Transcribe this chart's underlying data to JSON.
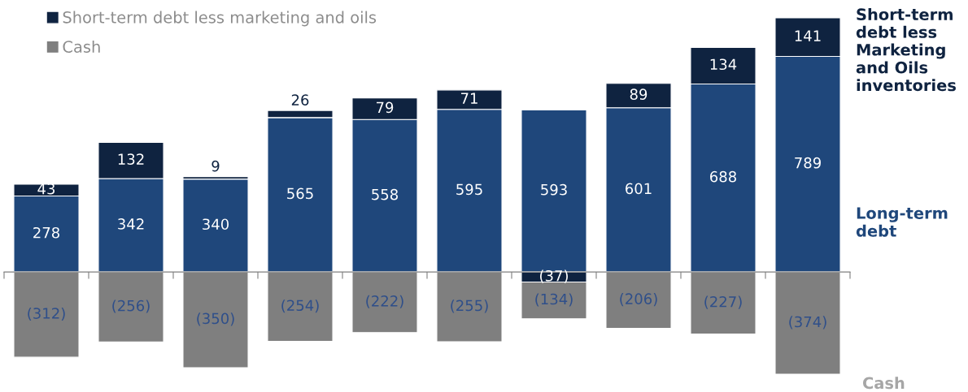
{
  "chart_data": {
    "type": "bar",
    "stacked": true,
    "categories": [
      null,
      null,
      null,
      null,
      null,
      null,
      null,
      null,
      null,
      null
    ],
    "series": [
      {
        "color": "#1f477b",
        "values": [
          278,
          342,
          340,
          565,
          558,
          595,
          593,
          601,
          688,
          789
        ],
        "value_labels": [
          "278",
          "342",
          "340",
          "565",
          "558",
          "595",
          "593",
          "601",
          "688",
          "789"
        ]
      },
      {
        "name": "Short-term debt less marketing and oils",
        "color": "#0f2340",
        "values": [
          43,
          132,
          9,
          26,
          79,
          71,
          -37,
          89,
          134,
          141
        ],
        "value_labels": [
          "43",
          "132",
          "9",
          "26",
          "79",
          "71",
          "(37)",
          "89",
          "134",
          "141"
        ]
      },
      {
        "name": "Cash",
        "color": "#7f7f7f",
        "values": [
          -312,
          -256,
          -350,
          -254,
          -222,
          -255,
          -134,
          -206,
          -227,
          -374
        ],
        "value_labels": [
          "(312)",
          "(256)",
          "(350)",
          "(254)",
          "(222)",
          "(255)",
          "(134)",
          "(206)",
          "(227)",
          "(374)"
        ]
      }
    ],
    "legend": "top left",
    "annotations": [
      "Short-term debt less Marketing and Oils inventories",
      "Long-term debt",
      "Cash"
    ]
  }
}
